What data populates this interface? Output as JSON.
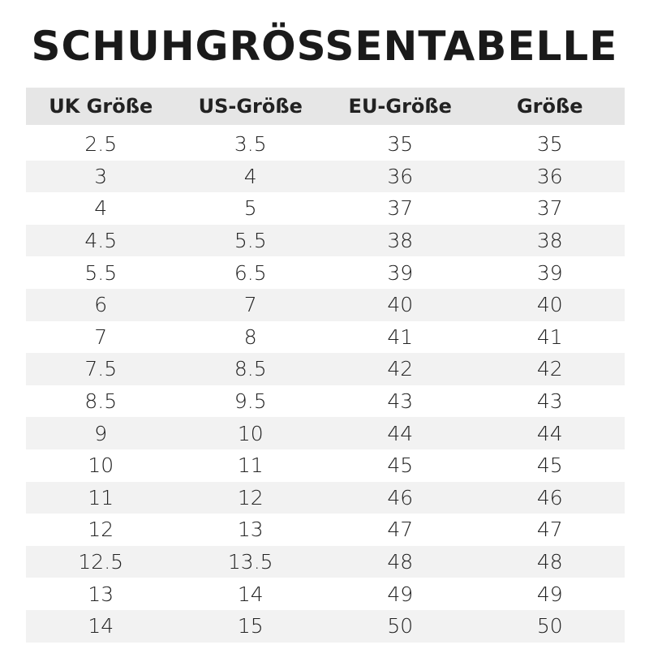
{
  "title": "SCHUHGRÖSSENTABELLE",
  "table": {
    "header": [
      "UK Größe",
      "US-Größe",
      "EU-Größe",
      "Größe"
    ],
    "rows": [
      [
        "2.5",
        "3.5",
        "35",
        "35"
      ],
      [
        "3",
        "4",
        "36",
        "36"
      ],
      [
        "4",
        "5",
        "37",
        "37"
      ],
      [
        "4.5",
        "5.5",
        "38",
        "38"
      ],
      [
        "5.5",
        "6.5",
        "39",
        "39"
      ],
      [
        "6",
        "7",
        "40",
        "40"
      ],
      [
        "7",
        "8",
        "41",
        "41"
      ],
      [
        "7.5",
        "8.5",
        "42",
        "42"
      ],
      [
        "8.5",
        "9.5",
        "43",
        "43"
      ],
      [
        "9",
        "10",
        "44",
        "44"
      ],
      [
        "10",
        "11",
        "45",
        "45"
      ],
      [
        "11",
        "12",
        "46",
        "46"
      ],
      [
        "12",
        "13",
        "47",
        "47"
      ],
      [
        "12.5",
        "13.5",
        "48",
        "48"
      ],
      [
        "13",
        "14",
        "49",
        "49"
      ],
      [
        "14",
        "15",
        "50",
        "50"
      ]
    ]
  }
}
